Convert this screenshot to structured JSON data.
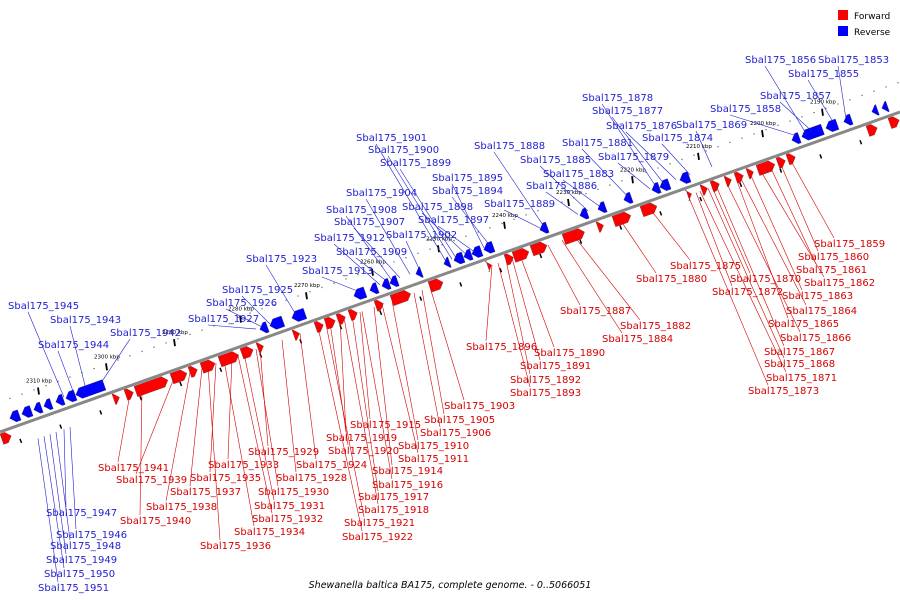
{
  "caption": "Shewanella baltica BA175, complete genome. - 0..5066051",
  "legend": [
    {
      "label": "Forward",
      "color": "#ff0000"
    },
    {
      "label": "Reverse",
      "color": "#0000ff"
    }
  ],
  "colors": {
    "forward": "#ff0000",
    "reverse": "#0000ff",
    "forward_label": "#d40000",
    "reverse_label": "#1f1fcf"
  },
  "ticks": [
    "2190 kbp",
    "2200 kbp",
    "2210 kbp",
    "2220 kbp",
    "2230 kbp",
    "2240 kbp",
    "2250 kbp",
    "2260 kbp",
    "2270 kbp",
    "2280 kbp",
    "2290 kbp",
    "2300 kbp",
    "2310 kbp"
  ],
  "reverse_labels_top": [
    "Sbal175_1853",
    "Sbal175_1855",
    "Sbal175_1856",
    "Sbal175_1857",
    "Sbal175_1858",
    "Sbal175_1869",
    "Sbal175_1874",
    "Sbal175_1876",
    "Sbal175_1877",
    "Sbal175_1878",
    "Sbal175_1879",
    "Sbal175_1881",
    "Sbal175_1883",
    "Sbal175_1885",
    "Sbal175_1886",
    "Sbal175_1888",
    "Sbal175_1889",
    "Sbal175_1894",
    "Sbal175_1895",
    "Sbal175_1897",
    "Sbal175_1898",
    "Sbal175_1899",
    "Sbal175_1900",
    "Sbal175_1901",
    "Sbal175_1902",
    "Sbal175_1904",
    "Sbal175_1907",
    "Sbal175_1908",
    "Sbal175_1909",
    "Sbal175_1912",
    "Sbal175_1913",
    "Sbal175_1923",
    "Sbal175_1925",
    "Sbal175_1926",
    "Sbal175_1927",
    "Sbal175_1942",
    "Sbal175_1943",
    "Sbal175_1944",
    "Sbal175_1945"
  ],
  "forward_labels_right": [
    "Sbal175_1859",
    "Sbal175_1860",
    "Sbal175_1861",
    "Sbal175_1862",
    "Sbal175_1863",
    "Sbal175_1864",
    "Sbal175_1865",
    "Sbal175_1866",
    "Sbal175_1867",
    "Sbal175_1868",
    "Sbal175_1870",
    "Sbal175_1871",
    "Sbal175_1872",
    "Sbal175_1873",
    "Sbal175_1875",
    "Sbal175_1880"
  ],
  "forward_labels_mid": [
    "Sbal175_1882",
    "Sbal175_1884",
    "Sbal175_1887",
    "Sbal175_1890",
    "Sbal175_1891",
    "Sbal175_1892",
    "Sbal175_1893",
    "Sbal175_1896",
    "Sbal175_1903",
    "Sbal175_1905",
    "Sbal175_1906"
  ],
  "forward_labels_low": [
    "Sbal175_1910",
    "Sbal175_1911",
    "Sbal175_1914",
    "Sbal175_1915",
    "Sbal175_1916",
    "Sbal175_1917",
    "Sbal175_1918",
    "Sbal175_1919",
    "Sbal175_1920",
    "Sbal175_1921",
    "Sbal175_1922",
    "Sbal175_1924",
    "Sbal175_1928",
    "Sbal175_1929",
    "Sbal175_1930",
    "Sbal175_1931",
    "Sbal175_1932",
    "Sbal175_1933",
    "Sbal175_1934",
    "Sbal175_1935",
    "Sbal175_1936",
    "Sbal175_1937",
    "Sbal175_1938",
    "Sbal175_1939",
    "Sbal175_1940",
    "Sbal175_1941"
  ],
  "reverse_labels_bottom": [
    "Sbal175_1946",
    "Sbal175_1947",
    "Sbal175_1948",
    "Sbal175_1949",
    "Sbal175_1950",
    "Sbal175_1951"
  ]
}
